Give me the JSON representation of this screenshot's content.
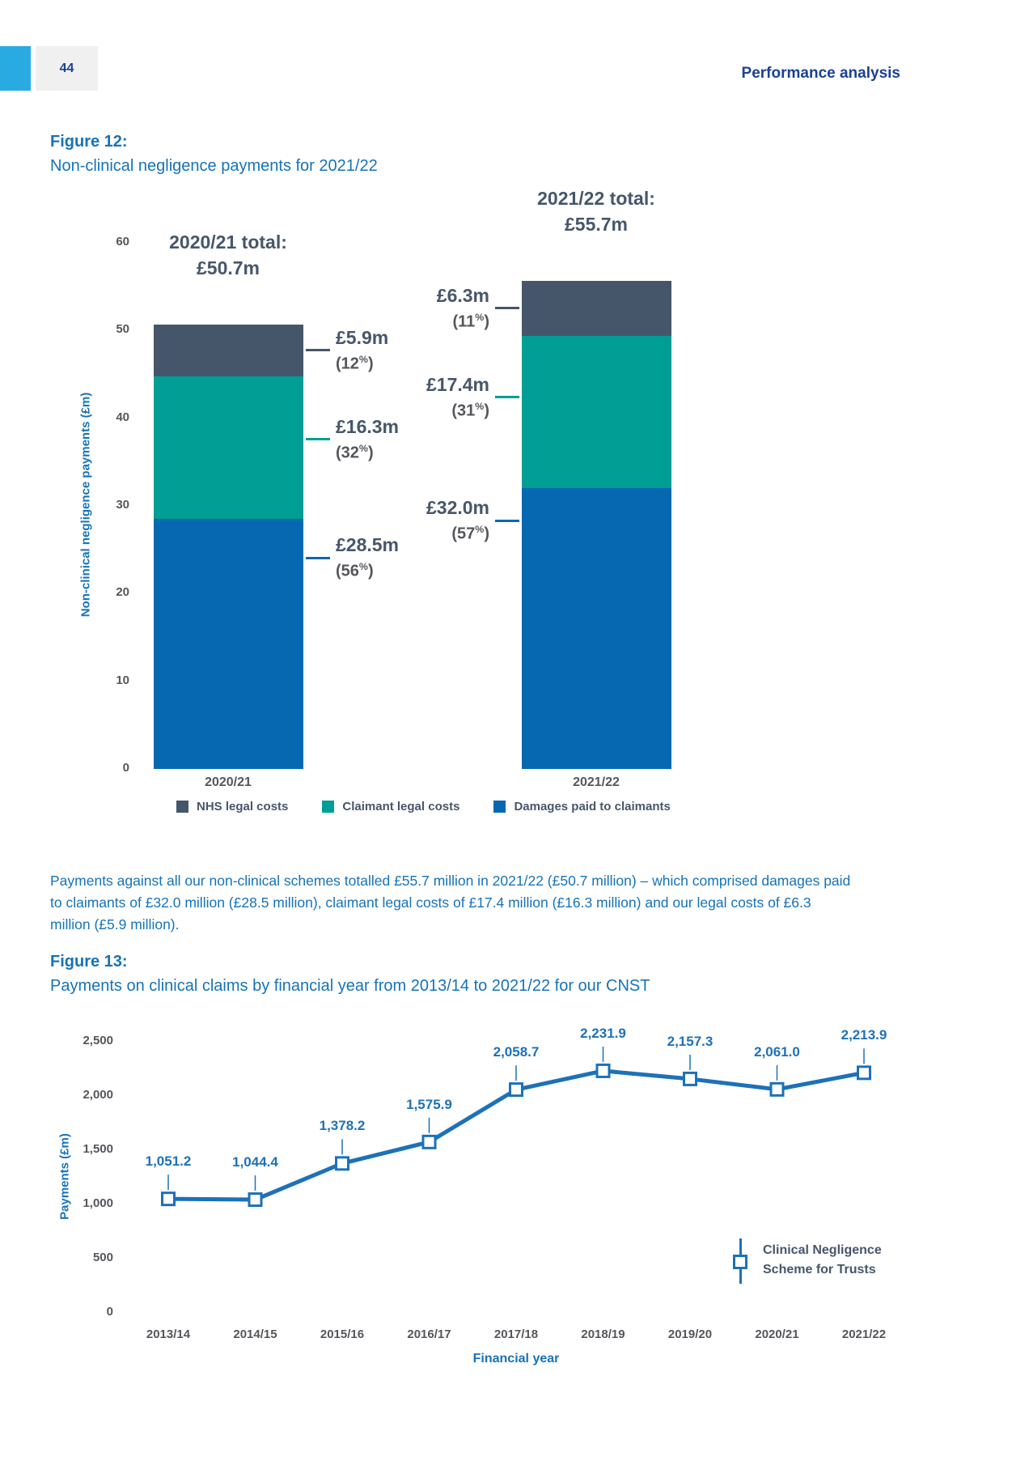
{
  "page": {
    "number": "44",
    "header": "Performance analysis",
    "accent_color": "#29abe2",
    "header_color": "#1b4193"
  },
  "figure12": {
    "label": "Figure 12:",
    "title": "Non-clinical negligence payments for 2021/22"
  },
  "paragraph": "Payments against all our non-clinical schemes totalled £55.7 million in 2021/22 (£50.7 million) – which comprised damages paid to claimants of £32.0 million (£28.5 million), claimant legal costs of £17.4 million (£16.3 million) and our legal costs of £6.3 million (£5.9 million).",
  "figure13": {
    "label": "Figure 13:",
    "title": "Payments on clinical claims by financial year from 2013/14 to 2021/22 for our CNST"
  },
  "chart_data": [
    {
      "type": "bar",
      "stacked": true,
      "title": "Non-clinical negligence payments for 2021/22",
      "categories": [
        "2020/21",
        "2021/22"
      ],
      "series": [
        {
          "name": "Damages paid to claimants",
          "color": "#0768b2",
          "values": [
            28.5,
            32.0
          ],
          "value_labels": [
            "£28.5m",
            "£32.0m"
          ],
          "pct_labels": [
            "(56%)",
            "(57%)"
          ]
        },
        {
          "name": "Claimant legal costs",
          "color": "#009e94",
          "values": [
            16.3,
            17.4
          ],
          "value_labels": [
            "£16.3m",
            "£17.4m"
          ],
          "pct_labels": [
            "(32%)",
            "(31%)"
          ]
        },
        {
          "name": "NHS legal costs",
          "color": "#46566a",
          "values": [
            5.9,
            6.3
          ],
          "value_labels": [
            "£5.9m",
            "£6.3m"
          ],
          "pct_labels": [
            "(12%)",
            "(11%)"
          ]
        }
      ],
      "totals": [
        {
          "line1": "2020/21 total:",
          "line2": "£50.7m"
        },
        {
          "line1": "2021/22 total:",
          "line2": "£55.7m"
        }
      ],
      "legend": [
        {
          "label": "NHS legal costs",
          "color": "#46566a"
        },
        {
          "label": "Claimant legal costs",
          "color": "#009e94"
        },
        {
          "label": "Damages paid to claimants",
          "color": "#0768b2"
        }
      ],
      "ylabel": "Non-clinical negligence payments (£m)",
      "yticks": [
        0,
        10,
        20,
        30,
        40,
        50,
        60
      ],
      "ylim": [
        0,
        60
      ],
      "grid": false,
      "legend_position": "bottom"
    },
    {
      "type": "line",
      "x": [
        "2013/14",
        "2014/15",
        "2015/16",
        "2016/17",
        "2017/18",
        "2018/19",
        "2019/20",
        "2020/21",
        "2021/22"
      ],
      "values": [
        1051.2,
        1044.4,
        1378.2,
        1575.9,
        2058.7,
        2231.9,
        2157.3,
        2061.0,
        2213.9
      ],
      "value_labels": [
        "1,051.2",
        "1,044.4",
        "1,378.2",
        "1,575.9",
        "2,058.7",
        "2,231.9",
        "2,157.3",
        "2,061.0",
        "2,213.9"
      ],
      "series_name": "Clinical Negligence Scheme for Trusts",
      "legend_lines": [
        "Clinical Negligence",
        "Scheme for Trusts"
      ],
      "xlabel": "Financial year",
      "ylabel": "Payments (£m)",
      "ytick_labels": [
        "0",
        "500",
        "1,000",
        "1,500",
        "2,000",
        "2,500"
      ],
      "yticks": [
        0,
        500,
        1000,
        1500,
        2000,
        2500
      ],
      "ylim": [
        0,
        2500
      ],
      "grid": false,
      "line_color": "#1d71b8",
      "marker": "square-open",
      "legend_position": "right-middle"
    }
  ]
}
